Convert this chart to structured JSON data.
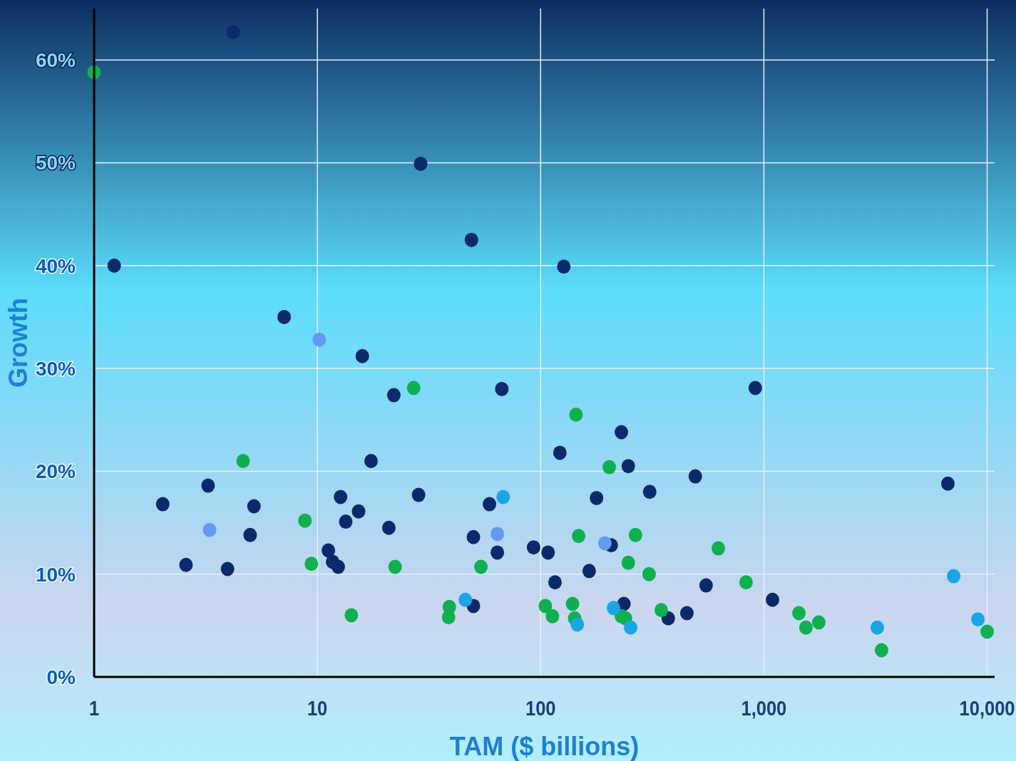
{
  "chart_data": {
    "type": "scatter",
    "xlabel": "TAM ($ billions)",
    "ylabel": "Growth",
    "log": "x",
    "grid": true,
    "marker": "circle",
    "xlim": [
      1,
      10800
    ],
    "xticks": [
      1,
      10,
      100,
      {
        "value": 1000,
        "label": "1,000"
      },
      {
        "value": 10000,
        "label": "10,000"
      }
    ],
    "ylim": [
      0,
      65
    ],
    "yticks": [
      {
        "value": 0,
        "label": "0%"
      },
      {
        "value": 10,
        "label": "10%"
      },
      {
        "value": 20,
        "label": "20%"
      },
      {
        "value": 30,
        "label": "30%"
      },
      {
        "value": 40,
        "label": "40%"
      },
      {
        "value": 50,
        "label": "50%"
      },
      {
        "value": 60,
        "label": "60%"
      }
    ],
    "series": [
      {
        "color": "#0b2a6b",
        "x": [
          4.2,
          1.23,
          29,
          49,
          127,
          7.1,
          15.9,
          22,
          67,
          915,
          230,
          122,
          247,
          17.4,
          493,
          3.24,
          6670,
          308,
          2.03,
          5.2,
          12.7,
          28.4,
          178,
          59,
          15.3,
          13.4,
          20.9,
          5.0,
          50,
          11.2,
          93,
          108,
          64,
          207,
          11.7,
          12.4,
          2.58,
          3.96,
          165,
          116,
          551,
          1093,
          236,
          50,
          452,
          373
        ],
        "values": [
          62.7,
          40.0,
          49.9,
          42.5,
          39.9,
          35.0,
          31.2,
          27.4,
          28.0,
          28.1,
          23.8,
          21.8,
          20.5,
          21.0,
          19.5,
          18.6,
          18.8,
          18.0,
          16.8,
          16.6,
          17.5,
          17.7,
          17.4,
          16.8,
          16.1,
          15.1,
          14.5,
          13.8,
          13.6,
          12.3,
          12.6,
          12.1,
          12.1,
          12.8,
          11.2,
          10.7,
          10.9,
          10.5,
          10.3,
          9.2,
          8.9,
          7.5,
          7.1,
          6.9,
          6.2,
          5.7
        ]
      },
      {
        "color": "#10b050",
        "x": [
          1.0,
          27,
          144,
          4.65,
          203,
          8.8,
          148,
          266,
          625,
          9.4,
          22.3,
          54,
          247,
          306,
          832,
          39,
          38.7,
          105,
          139,
          14.2,
          113,
          142,
          230,
          240,
          347,
          1435,
          1543,
          1762,
          3365,
          10000
        ],
        "values": [
          58.8,
          28.1,
          25.5,
          21.0,
          20.4,
          15.2,
          13.7,
          13.8,
          12.5,
          11.0,
          10.7,
          10.7,
          11.1,
          10.0,
          9.2,
          6.8,
          5.8,
          6.9,
          7.1,
          6.0,
          5.9,
          5.7,
          5.9,
          5.7,
          6.5,
          6.2,
          4.8,
          5.3,
          2.6,
          4.4
        ]
      },
      {
        "color": "#1aa6e6",
        "x": [
          68,
          46,
          212,
          146,
          253,
          3220,
          7080,
          9090
        ],
        "values": [
          17.5,
          7.5,
          6.7,
          5.1,
          4.8,
          4.8,
          9.8,
          5.6
        ]
      },
      {
        "color": "#6699f0",
        "x": [
          10.2,
          3.29,
          64,
          194
        ],
        "values": [
          32.8,
          14.3,
          13.9,
          13.0
        ]
      }
    ]
  }
}
